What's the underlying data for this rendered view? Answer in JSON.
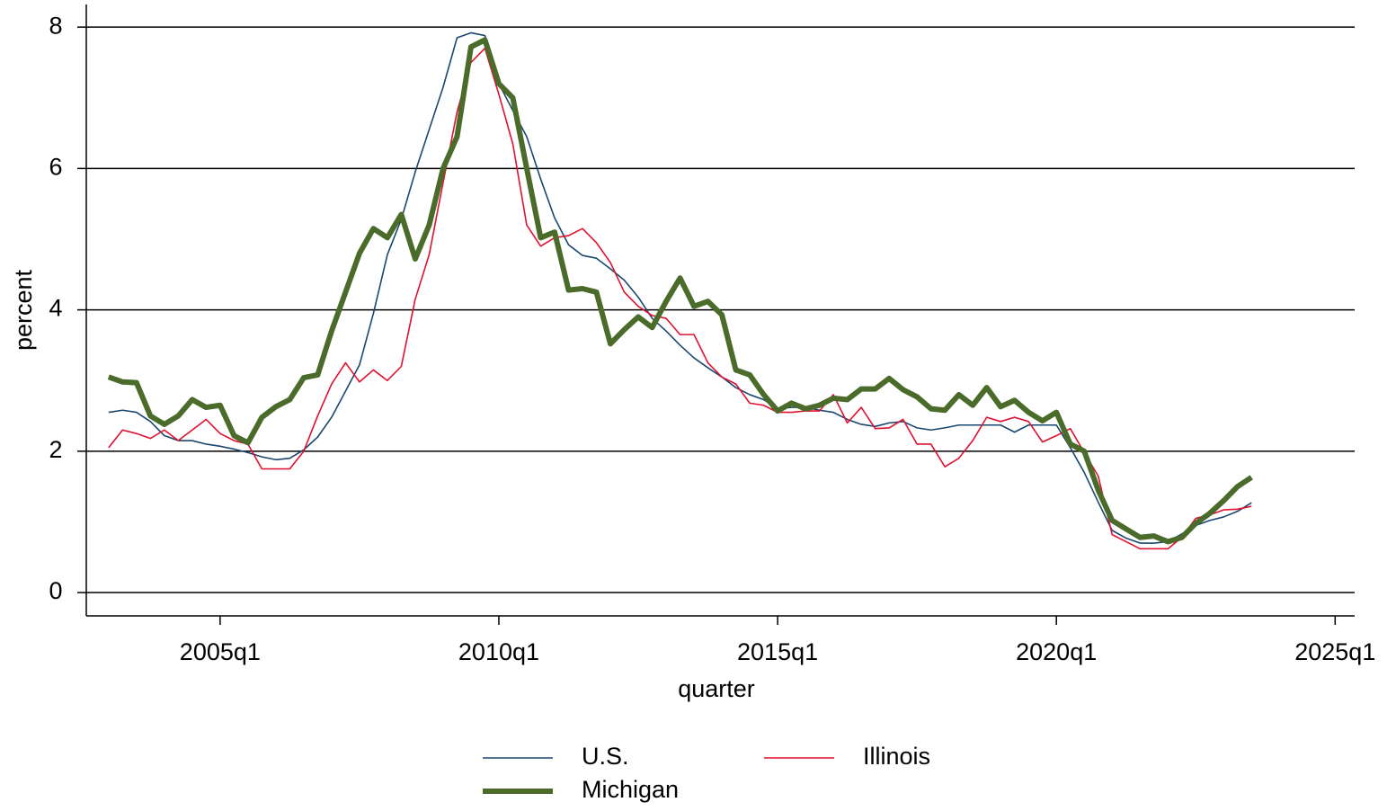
{
  "chart_data": {
    "type": "line",
    "x_label": "quarter",
    "y_label": "percent",
    "x": [
      2003,
      2003.25,
      2003.5,
      2003.75,
      2004,
      2004.25,
      2004.5,
      2004.75,
      2005,
      2005.25,
      2005.5,
      2005.75,
      2006,
      2006.25,
      2006.5,
      2006.75,
      2007,
      2007.25,
      2007.5,
      2007.75,
      2008,
      2008.25,
      2008.5,
      2008.75,
      2009,
      2009.25,
      2009.5,
      2009.75,
      2010,
      2010.25,
      2010.5,
      2010.75,
      2011,
      2011.25,
      2011.5,
      2011.75,
      2012,
      2012.25,
      2012.5,
      2012.75,
      2013,
      2013.25,
      2013.5,
      2013.75,
      2014,
      2014.25,
      2014.5,
      2014.75,
      2015,
      2015.25,
      2015.5,
      2015.75,
      2016,
      2016.25,
      2016.5,
      2016.75,
      2017,
      2017.25,
      2017.5,
      2017.75,
      2018,
      2018.25,
      2018.5,
      2018.75,
      2019,
      2019.25,
      2019.5,
      2019.75,
      2020,
      2020.25,
      2020.5,
      2020.75,
      2021,
      2021.25,
      2021.5,
      2021.75,
      2022,
      2022.25,
      2022.5,
      2022.75,
      2023,
      2023.25,
      2023.5
    ],
    "series": [
      {
        "name": "U.S.",
        "color": "#1a476f",
        "width": 1.6,
        "values": [
          2.55,
          2.58,
          2.55,
          2.42,
          2.22,
          2.15,
          2.15,
          2.1,
          2.07,
          2.03,
          1.98,
          1.92,
          1.88,
          1.9,
          2.02,
          2.2,
          2.48,
          2.85,
          3.22,
          3.95,
          4.78,
          5.28,
          5.95,
          6.55,
          7.15,
          7.85,
          7.92,
          7.88,
          7.2,
          6.82,
          6.45,
          5.85,
          5.3,
          4.92,
          4.77,
          4.73,
          4.58,
          4.42,
          4.18,
          3.88,
          3.7,
          3.5,
          3.32,
          3.18,
          3.05,
          2.9,
          2.8,
          2.73,
          2.6,
          2.62,
          2.62,
          2.58,
          2.55,
          2.45,
          2.38,
          2.35,
          2.4,
          2.42,
          2.33,
          2.3,
          2.33,
          2.37,
          2.37,
          2.37,
          2.37,
          2.27,
          2.37,
          2.37,
          2.37,
          2.05,
          1.7,
          1.28,
          0.88,
          0.77,
          0.7,
          0.7,
          0.72,
          0.83,
          0.95,
          1.02,
          1.07,
          1.15,
          1.27
        ]
      },
      {
        "name": "Illinois",
        "color": "#e0102f",
        "width": 1.6,
        "values": [
          2.05,
          2.3,
          2.25,
          2.18,
          2.3,
          2.15,
          2.3,
          2.45,
          2.25,
          2.15,
          2.1,
          1.75,
          1.75,
          1.75,
          2.0,
          2.5,
          2.95,
          3.25,
          2.98,
          3.15,
          3.0,
          3.2,
          4.15,
          4.78,
          5.8,
          6.8,
          7.5,
          7.7,
          7.05,
          6.35,
          5.2,
          4.9,
          5.02,
          5.05,
          5.15,
          4.95,
          4.67,
          4.25,
          4.05,
          3.92,
          3.88,
          3.65,
          3.65,
          3.25,
          3.05,
          2.95,
          2.68,
          2.65,
          2.55,
          2.55,
          2.57,
          2.57,
          2.8,
          2.4,
          2.62,
          2.32,
          2.33,
          2.45,
          2.1,
          2.1,
          1.78,
          1.9,
          2.15,
          2.48,
          2.42,
          2.48,
          2.42,
          2.13,
          2.22,
          2.32,
          1.98,
          1.65,
          0.82,
          0.72,
          0.62,
          0.62,
          0.62,
          0.78,
          1.05,
          1.1,
          1.17,
          1.18,
          1.22
        ]
      },
      {
        "name": "Michigan",
        "color": "#4a6b2a",
        "width": 6,
        "values": [
          3.05,
          2.98,
          2.97,
          2.5,
          2.38,
          2.5,
          2.73,
          2.62,
          2.65,
          2.22,
          2.12,
          2.48,
          2.63,
          2.73,
          3.04,
          3.08,
          3.7,
          4.25,
          4.8,
          5.15,
          5.02,
          5.35,
          4.72,
          5.2,
          6.0,
          6.45,
          7.72,
          7.82,
          7.2,
          7.0,
          6.0,
          5.02,
          5.1,
          4.28,
          4.3,
          4.25,
          3.52,
          3.72,
          3.9,
          3.75,
          4.12,
          4.45,
          4.05,
          4.12,
          3.93,
          3.15,
          3.08,
          2.8,
          2.57,
          2.68,
          2.6,
          2.65,
          2.75,
          2.73,
          2.88,
          2.88,
          3.03,
          2.87,
          2.77,
          2.6,
          2.58,
          2.8,
          2.65,
          2.9,
          2.63,
          2.72,
          2.55,
          2.43,
          2.55,
          2.1,
          2.0,
          1.45,
          1.02,
          0.9,
          0.78,
          0.8,
          0.72,
          0.78,
          0.98,
          1.12,
          1.3,
          1.5,
          1.63
        ]
      }
    ],
    "xlim": [
      2002.6,
      2025.35
    ],
    "xticks": [
      {
        "value": 2005,
        "label": "2005q1"
      },
      {
        "value": 2010,
        "label": "2010q1"
      },
      {
        "value": 2015,
        "label": "2015q1"
      },
      {
        "value": 2020,
        "label": "2020q1"
      },
      {
        "value": 2025,
        "label": "2025q1"
      }
    ],
    "ylim": [
      -0.33,
      8.32
    ],
    "yticks": [
      0,
      2,
      4,
      6,
      8
    ],
    "grid": true
  }
}
